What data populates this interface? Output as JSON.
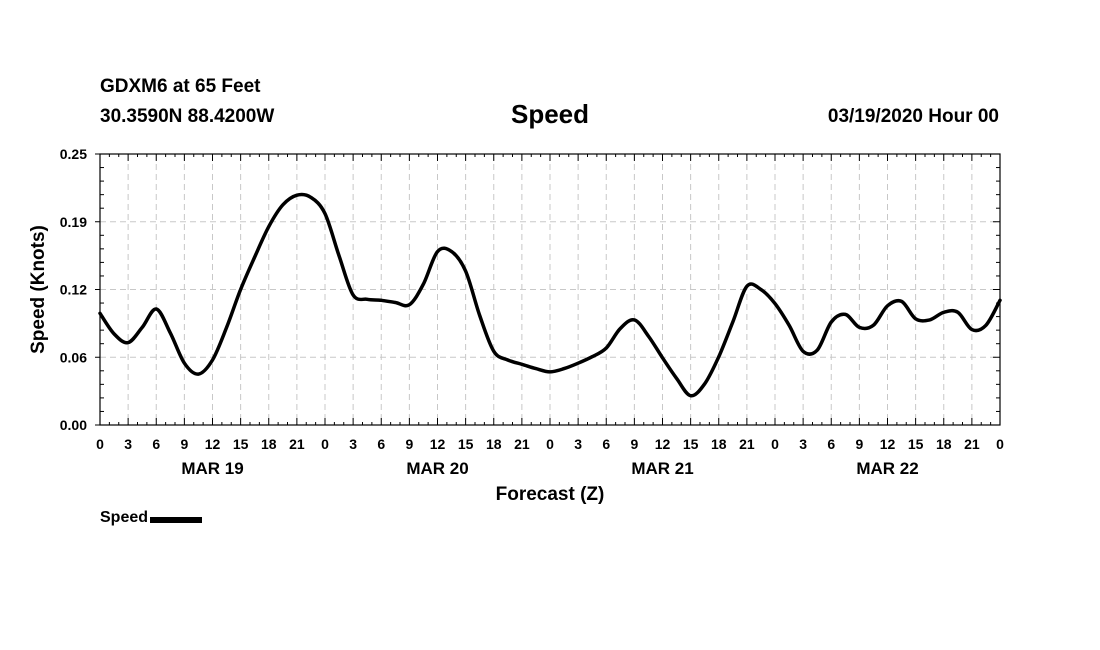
{
  "header": {
    "station": "GDXM6 at 65 Feet",
    "coords": "30.3590N 88.4200W",
    "title": "Speed",
    "forecast_date": "03/19/2020 Hour 00"
  },
  "legend": {
    "label": "Speed"
  },
  "chart_data": {
    "type": "line",
    "title": "Speed",
    "xlabel": "Forecast (Z)",
    "ylabel": "Speed (Knots)",
    "ylim": [
      0,
      0.25
    ],
    "xlim": [
      0,
      96
    ],
    "yticks": [
      "0.00",
      "0.06",
      "0.12",
      "0.19",
      "0.25"
    ],
    "ytick_values": [
      0,
      0.0625,
      0.125,
      0.1875,
      0.25
    ],
    "xtick_labels": [
      "0",
      "3",
      "6",
      "9",
      "12",
      "15",
      "18",
      "21",
      "0",
      "3",
      "6",
      "9",
      "12",
      "15",
      "18",
      "21",
      "0",
      "3",
      "6",
      "9",
      "12",
      "15",
      "18",
      "21",
      "0",
      "3",
      "6",
      "9",
      "12",
      "15",
      "18",
      "21",
      "0"
    ],
    "day_labels": [
      "MAR 19",
      "MAR 20",
      "MAR 21",
      "MAR 22"
    ],
    "grid": true,
    "line_color": "#000000",
    "series": [
      {
        "name": "Speed",
        "x": [
          0,
          1.5,
          3,
          4.5,
          6,
          7.5,
          9,
          10.5,
          12,
          13.5,
          15,
          16.5,
          18,
          19.5,
          21,
          22.5,
          24,
          25.5,
          27,
          28.5,
          30,
          31.5,
          33,
          34.5,
          36,
          37.5,
          39,
          40.5,
          42,
          43.5,
          45,
          46.5,
          48,
          49.5,
          51,
          52.5,
          54,
          55.5,
          57,
          58.5,
          60,
          61.5,
          63,
          64.5,
          66,
          67.5,
          69,
          70.5,
          72,
          73.5,
          75,
          76.5,
          78,
          79.5,
          81,
          82.5,
          84,
          85.5,
          87,
          88.5,
          90,
          91.5,
          93,
          94.5,
          96
        ],
        "values": [
          0.103,
          0.084,
          0.076,
          0.09,
          0.107,
          0.085,
          0.057,
          0.047,
          0.06,
          0.09,
          0.125,
          0.155,
          0.183,
          0.203,
          0.212,
          0.21,
          0.195,
          0.156,
          0.12,
          0.116,
          0.115,
          0.113,
          0.111,
          0.13,
          0.16,
          0.16,
          0.142,
          0.101,
          0.068,
          0.06,
          0.056,
          0.052,
          0.049,
          0.052,
          0.057,
          0.063,
          0.071,
          0.089,
          0.097,
          0.082,
          0.062,
          0.043,
          0.027,
          0.038,
          0.063,
          0.095,
          0.128,
          0.125,
          0.112,
          0.092,
          0.068,
          0.069,
          0.095,
          0.102,
          0.09,
          0.092,
          0.11,
          0.114,
          0.098,
          0.097,
          0.104,
          0.104,
          0.088,
          0.092,
          0.115
        ]
      }
    ]
  }
}
